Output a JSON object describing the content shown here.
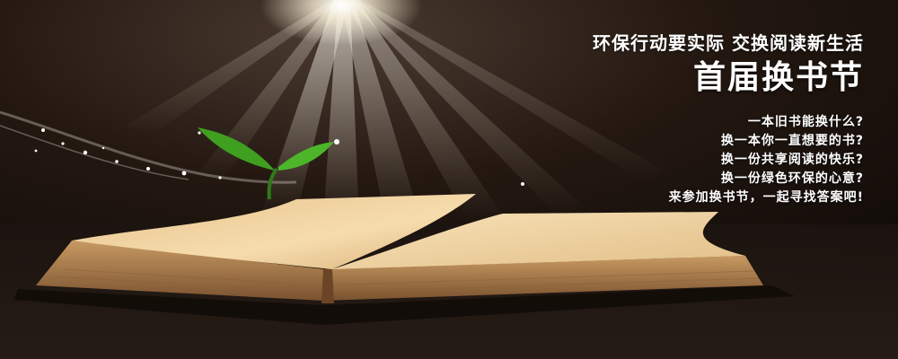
{
  "banner": {
    "slogan": "环保行动要实际  交换阅读新生活",
    "headline": "首届换书节",
    "questions": [
      "一本旧书能换什么?",
      "换一本你一直想要的书?",
      "换一份共享阅读的快乐?",
      "换一份绿色环保的心意?",
      "来参加换书节，一起寻找答案吧!"
    ]
  },
  "illustration": {
    "background_color": "#1a120d",
    "light_color": "#fff6dc",
    "page_color": "#f4d8a6",
    "sprout_color": "#3fa020"
  }
}
